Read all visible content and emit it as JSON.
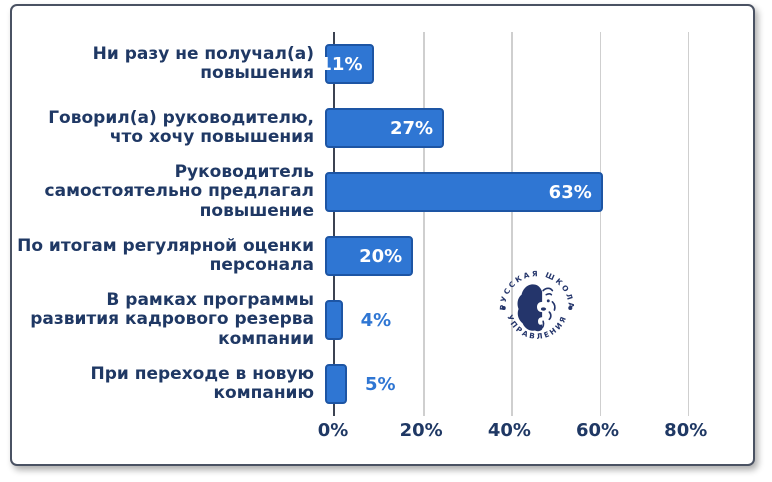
{
  "chart_data": {
    "type": "bar",
    "orientation": "horizontal",
    "title": "",
    "categories": [
      "Ни разу не получал(а) повышения",
      "Говорил(а) руководителю, что хочу повышения",
      "Руководитель самостоятельно предлагал повышение",
      "По итогам регулярной оценки персонала",
      "В рамках программы развития кадрового резерва компании",
      "При переходе в новую компанию"
    ],
    "values": [
      11,
      27,
      63,
      20,
      4,
      5
    ],
    "value_labels": [
      "11%",
      "27%",
      "63%",
      "20%",
      "4%",
      "5%"
    ],
    "x_ticks": [
      "0%",
      "20%",
      "40%",
      "60%",
      "80%"
    ],
    "x_tick_values": [
      0,
      20,
      40,
      60,
      80
    ],
    "xlim": [
      0,
      88
    ],
    "grid": true,
    "legend": "none",
    "inside_label_threshold": 10,
    "colors": {
      "bar_fill": "#2F76D3",
      "bar_border": "#1D55A4",
      "category_text": "#1F3864",
      "tick_text": "#1F3864",
      "value_inside": "#FFFFFF",
      "value_outside": "#2F76D3",
      "gridline": "#CFCFCF",
      "axis_line": "#3C4352",
      "card_border": "#4A5263"
    }
  },
  "logo": {
    "name": "Русская Школа Управления",
    "arc_top": "РУССКАЯ ШКОЛА",
    "arc_bottom": "УПРАВЛЕНИЯ",
    "separator": "•",
    "color": "#24356B"
  }
}
